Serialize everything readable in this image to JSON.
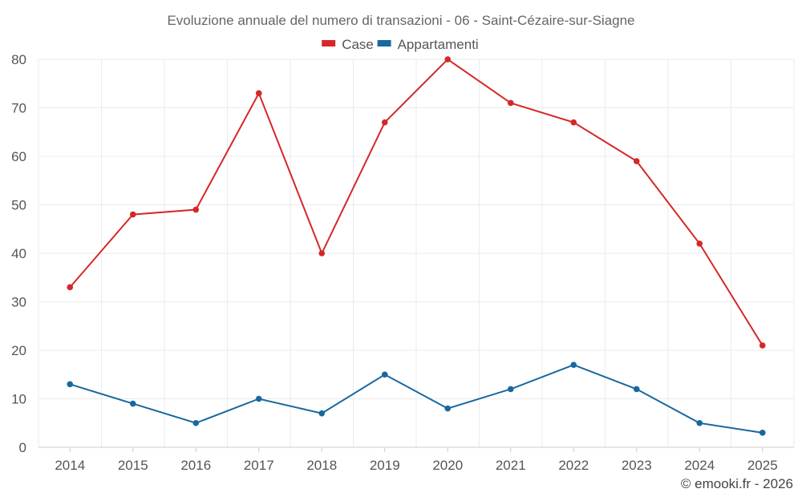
{
  "chart_data": {
    "type": "line",
    "title": "Evoluzione annuale del numero di transazioni - 06 - Saint-Cézaire-sur-Siagne",
    "categories": [
      "2014",
      "2015",
      "2016",
      "2017",
      "2018",
      "2019",
      "2020",
      "2021",
      "2022",
      "2023",
      "2024",
      "2025"
    ],
    "series": [
      {
        "name": "Case",
        "color": "#d62728",
        "values": [
          33,
          48,
          49,
          73,
          40,
          67,
          80,
          71,
          67,
          59,
          42,
          21
        ]
      },
      {
        "name": "Appartamenti",
        "color": "#1868a0",
        "values": [
          13,
          9,
          5,
          10,
          7,
          15,
          8,
          12,
          17,
          12,
          5,
          3
        ]
      }
    ],
    "xlabel": "",
    "ylabel": "",
    "ylim": [
      0,
      80
    ],
    "yticks": [
      "0",
      "10",
      "20",
      "30",
      "40",
      "50",
      "60",
      "70",
      "80"
    ],
    "legend_position": "top-center",
    "grid": true
  },
  "credit": "© emooki.fr - 2026"
}
